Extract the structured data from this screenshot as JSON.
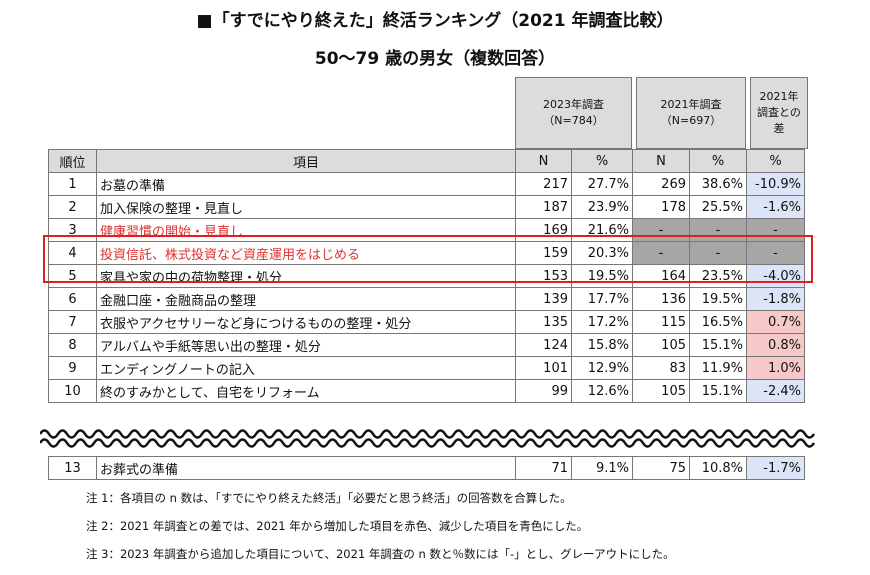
{
  "title": "■「すでにやり終えた」終活ランキング（2021 年調査比較）",
  "subtitle": "50～79 歳の男女（複数回答）",
  "headers": {
    "survey2023": "2023年調査\n（N=784）",
    "survey2021": "2021年調査\n（N=697）",
    "diff": "2021年\n調査との\n差",
    "rank": "順位",
    "item": "項目",
    "n": "N",
    "pct": "%"
  },
  "rows": [
    {
      "rank": "1",
      "item": "お墓の準備",
      "n23": "217",
      "p23": "27.7%",
      "n21": "269",
      "p21": "38.6%",
      "diff": "-10.9%",
      "type": "dec"
    },
    {
      "rank": "2",
      "item": "加入保険の整理・見直し",
      "n23": "187",
      "p23": "23.9%",
      "n21": "178",
      "p21": "25.5%",
      "diff": "-1.6%",
      "type": "dec"
    },
    {
      "rank": "3",
      "item": "健康習慣の開始・見直し",
      "n23": "169",
      "p23": "21.6%",
      "n21": "-",
      "p21": "-",
      "diff": "-",
      "type": "new"
    },
    {
      "rank": "4",
      "item": "投資信託、株式投資など資産運用をはじめる",
      "n23": "159",
      "p23": "20.3%",
      "n21": "-",
      "p21": "-",
      "diff": "-",
      "type": "new"
    },
    {
      "rank": "5",
      "item": "家具や家の中の荷物整理・処分",
      "n23": "153",
      "p23": "19.5%",
      "n21": "164",
      "p21": "23.5%",
      "diff": "-4.0%",
      "type": "dec"
    },
    {
      "rank": "6",
      "item": "金融口座・金融商品の整理",
      "n23": "139",
      "p23": "17.7%",
      "n21": "136",
      "p21": "19.5%",
      "diff": "-1.8%",
      "type": "dec"
    },
    {
      "rank": "7",
      "item": "衣服やアクセサリーなど身につけるものの整理・処分",
      "n23": "135",
      "p23": "17.2%",
      "n21": "115",
      "p21": "16.5%",
      "diff": "0.7%",
      "type": "inc"
    },
    {
      "rank": "8",
      "item": "アルバムや手紙等思い出の整理・処分",
      "n23": "124",
      "p23": "15.8%",
      "n21": "105",
      "p21": "15.1%",
      "diff": "0.8%",
      "type": "inc"
    },
    {
      "rank": "9",
      "item": "エンディングノートの記入",
      "n23": "101",
      "p23": "12.9%",
      "n21": "83",
      "p21": "11.9%",
      "diff": "1.0%",
      "type": "inc"
    },
    {
      "rank": "10",
      "item": "終のすみかとして、自宅をリフォーム",
      "n23": "99",
      "p23": "12.6%",
      "n21": "105",
      "p21": "15.1%",
      "diff": "-2.4%",
      "type": "dec"
    }
  ],
  "last_row": {
    "rank": "13",
    "item": "お葬式の準備",
    "n23": "71",
    "p23": "9.1%",
    "n21": "75",
    "p21": "10.8%",
    "diff": "-1.7%",
    "type": "dec"
  },
  "notes": [
    "注 1：各項目の n 数は、「すでにやり終えた終活」「必要だと思う終活」の回答数を合算した。",
    "注 2：2021 年調査との差では、2021 年から増加した項目を赤色、減少した項目を青色にした。",
    "注 3：2023 年調査から追加した項目について、2021 年調査の n 数と％数には「-」とし、グレーアウトにした。"
  ]
}
